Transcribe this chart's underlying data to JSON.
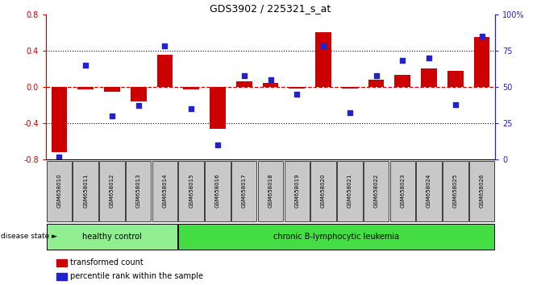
{
  "title": "GDS3902 / 225321_s_at",
  "samples": [
    "GSM658010",
    "GSM658011",
    "GSM658012",
    "GSM658013",
    "GSM658014",
    "GSM658015",
    "GSM658016",
    "GSM658017",
    "GSM658018",
    "GSM658019",
    "GSM658020",
    "GSM658021",
    "GSM658022",
    "GSM658023",
    "GSM658024",
    "GSM658025",
    "GSM658026"
  ],
  "bar_values": [
    -0.72,
    -0.03,
    -0.05,
    -0.16,
    0.35,
    -0.03,
    -0.46,
    0.06,
    0.04,
    -0.02,
    0.6,
    -0.02,
    0.08,
    0.13,
    0.2,
    0.18,
    0.55
  ],
  "dot_values_pct": [
    2,
    65,
    30,
    37,
    78,
    35,
    10,
    58,
    55,
    45,
    78,
    32,
    58,
    68,
    70,
    38,
    85
  ],
  "healthy_count": 5,
  "ylim": [
    -0.8,
    0.8
  ],
  "yticks": [
    -0.8,
    -0.4,
    0.0,
    0.4,
    0.8
  ],
  "right_yticks": [
    0,
    25,
    50,
    75,
    100
  ],
  "right_yticklabels": [
    "0",
    "25",
    "50",
    "75",
    "100%"
  ],
  "bar_color": "#CC0000",
  "dot_color": "#2222CC",
  "hline_color": "#CC0000",
  "dotted_line_color": "#000000",
  "healthy_fill": "#90EE90",
  "leukemia_fill": "#44DD44",
  "sample_bg": "#C8C8C8",
  "disease_state_label": "disease state",
  "healthy_label": "healthy control",
  "leukemia_label": "chronic B-lymphocytic leukemia",
  "legend_bar_label": "transformed count",
  "legend_dot_label": "percentile rank within the sample"
}
